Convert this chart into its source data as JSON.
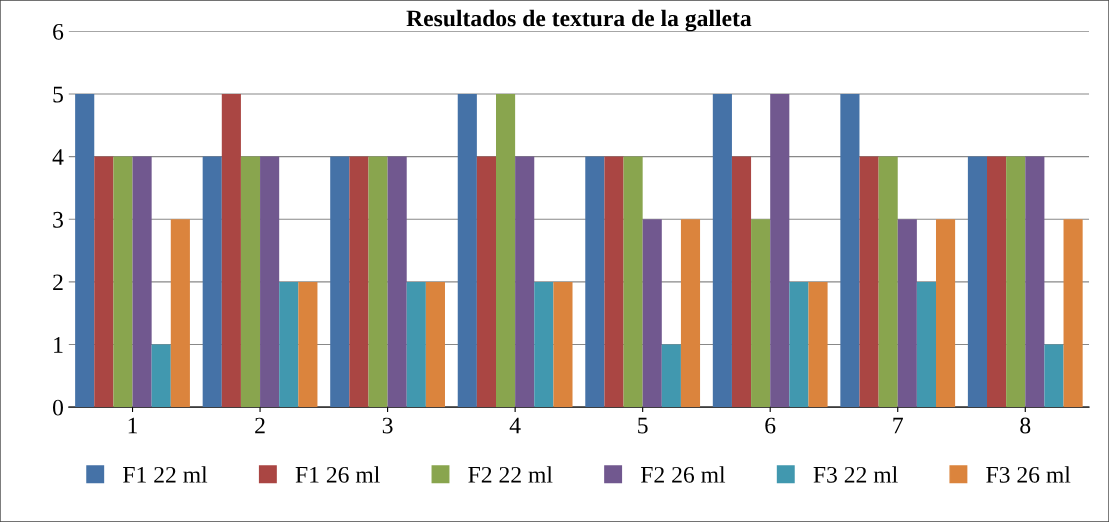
{
  "chart_data": {
    "type": "bar",
    "title": "Resultados de textura de la galleta",
    "categories": [
      "1",
      "2",
      "3",
      "4",
      "5",
      "6",
      "7",
      "8"
    ],
    "series": [
      {
        "name": "F1 22 ml",
        "color": "#4572a7",
        "values": [
          5,
          4,
          4,
          5,
          4,
          5,
          5,
          4
        ]
      },
      {
        "name": "F1 26 ml",
        "color": "#aa4643",
        "values": [
          4,
          5,
          4,
          4,
          4,
          4,
          4,
          4
        ]
      },
      {
        "name": "F2 22 ml",
        "color": "#89a54e",
        "values": [
          4,
          4,
          4,
          5,
          4,
          3,
          4,
          4
        ]
      },
      {
        "name": "F2 26 ml",
        "color": "#71588f",
        "values": [
          4,
          4,
          4,
          4,
          3,
          5,
          3,
          4
        ]
      },
      {
        "name": "F3 22 ml",
        "color": "#4198af",
        "values": [
          1,
          2,
          2,
          2,
          1,
          2,
          2,
          1
        ]
      },
      {
        "name": "F3 26 ml",
        "color": "#db843d",
        "values": [
          3,
          2,
          2,
          2,
          3,
          2,
          3,
          3
        ]
      }
    ],
    "ylim": [
      0,
      6
    ],
    "yticks": [
      0,
      1,
      2,
      3,
      4,
      5,
      6
    ],
    "grid": "y",
    "legend": "bottom"
  }
}
